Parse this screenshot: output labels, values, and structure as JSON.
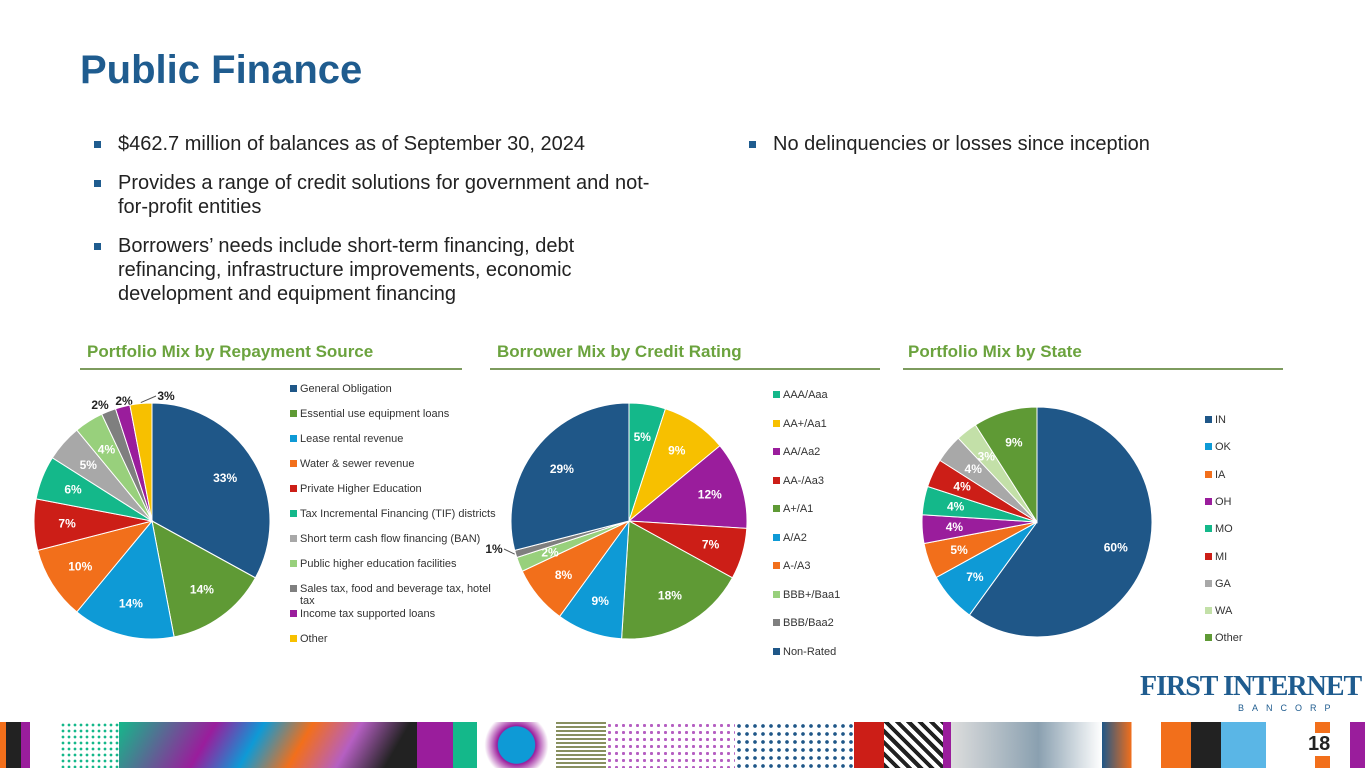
{
  "title": "Public Finance",
  "bullets_left": [
    "$462.7 million of balances as of September 30, 2024",
    "Provides a range of credit solutions for government and not-for-profit entities",
    "Borrowers’ needs include short-term financing, debt refinancing, infrastructure improvements, economic development and equipment financing"
  ],
  "bullets_right": [
    "No delinquencies or losses since inception"
  ],
  "page_number": "18",
  "logo": {
    "name": "FIRST INTERNET",
    "sub": "BANCORP"
  },
  "chart_data": [
    {
      "type": "pie",
      "title": "Portfolio Mix by Repayment Source",
      "categories": [
        "General Obligation",
        "Essential use equipment loans",
        "Lease rental revenue",
        "Water & sewer revenue",
        "Private Higher Education",
        "Tax Incremental Financing (TIF) districts",
        "Short term cash flow financing (BAN)",
        "Public higher education facilities",
        "Sales tax, food and beverage tax, hotel tax",
        "Income tax supported loans",
        "Other"
      ],
      "values": [
        33,
        14,
        14,
        10,
        7,
        6,
        5,
        4,
        2,
        2,
        3
      ],
      "labels": [
        "33%",
        "14%",
        "14%",
        "10%",
        "7%",
        "6%",
        "5%",
        "4%",
        "2%",
        "2%",
        "3%"
      ],
      "colors": [
        "#1f5788",
        "#5f9a35",
        "#0e9ad6",
        "#f26f1b",
        "#cc1e17",
        "#14b88a",
        "#a8a8a8",
        "#98d07c",
        "#7f7f7f",
        "#9a1d9c",
        "#f7c000"
      ],
      "legend": "right"
    },
    {
      "type": "pie",
      "title": "Borrower Mix by Credit Rating",
      "categories": [
        "AAA/Aaa",
        "AA+/Aa1",
        "AA/Aa2",
        "AA-/Aa3",
        "A+/A1",
        "A/A2",
        "A-/A3",
        "BBB+/Baa1",
        "BBB/Baa2",
        "Non-Rated"
      ],
      "values": [
        5,
        9,
        12,
        7,
        18,
        9,
        8,
        2,
        1,
        29
      ],
      "labels": [
        "5%",
        "9%",
        "12%",
        "7%",
        "18%",
        "9%",
        "8%",
        "2%",
        "1%",
        "29%"
      ],
      "colors": [
        "#14b88a",
        "#f7c000",
        "#9a1d9c",
        "#cc1e17",
        "#5f9a35",
        "#0e9ad6",
        "#f26f1b",
        "#98d07c",
        "#7f7f7f",
        "#1f5788"
      ],
      "legend": "right"
    },
    {
      "type": "pie",
      "title": "Portfolio Mix by State",
      "categories": [
        "IN",
        "OK",
        "IA",
        "OH",
        "MO",
        "MI",
        "GA",
        "WA",
        "Other"
      ],
      "values": [
        60,
        7,
        5,
        4,
        4,
        4,
        4,
        3,
        9
      ],
      "labels": [
        "60%",
        "7%",
        "5%",
        "4%",
        "4%",
        "4%",
        "4%",
        "3%",
        "9%"
      ],
      "colors": [
        "#1f5788",
        "#0e9ad6",
        "#f26f1b",
        "#9a1d9c",
        "#14b88a",
        "#cc1e17",
        "#a8a8a8",
        "#c3e0a8",
        "#5f9a35"
      ],
      "legend": "right"
    }
  ]
}
